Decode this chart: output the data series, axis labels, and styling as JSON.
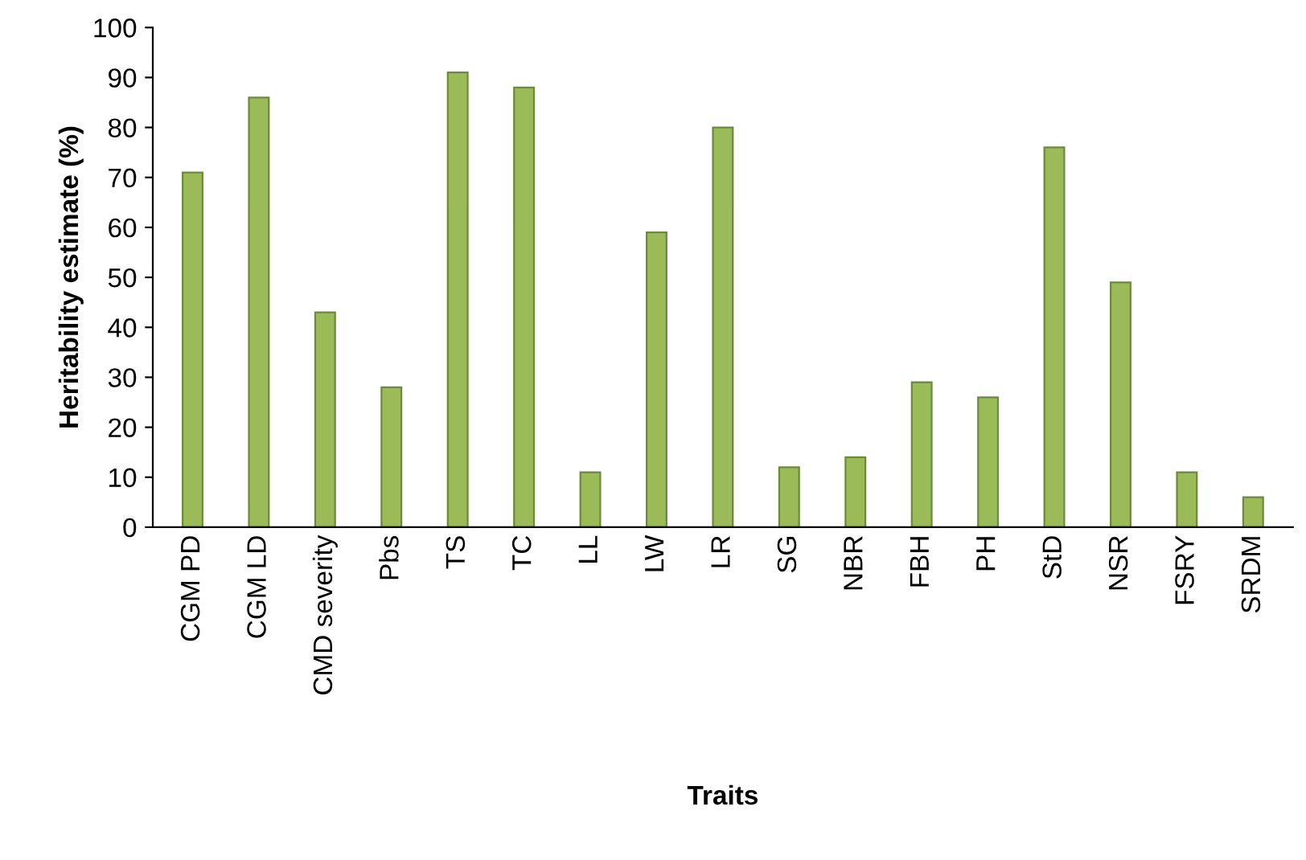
{
  "chart_data": {
    "type": "bar",
    "xlabel": "Traits",
    "ylabel": "Heritability estimate (%)",
    "categories": [
      "CGM PD",
      "CGM LD",
      "CMD severity",
      "Pbs",
      "TS",
      "TC",
      "LL",
      "LW",
      "LR",
      "SG",
      "NBR",
      "FBH",
      "PH",
      "StD",
      "NSR",
      "FSRY",
      "SRDM"
    ],
    "values": [
      71,
      86,
      43,
      28,
      91,
      88,
      11,
      59,
      80,
      12,
      14,
      29,
      26,
      76,
      49,
      11,
      6
    ],
    "color": "#9bbb59",
    "ylim": [
      0,
      100
    ],
    "yticks": [
      0,
      10,
      20,
      30,
      40,
      50,
      60,
      70,
      80,
      90,
      100
    ],
    "grid": false,
    "legend": false
  }
}
